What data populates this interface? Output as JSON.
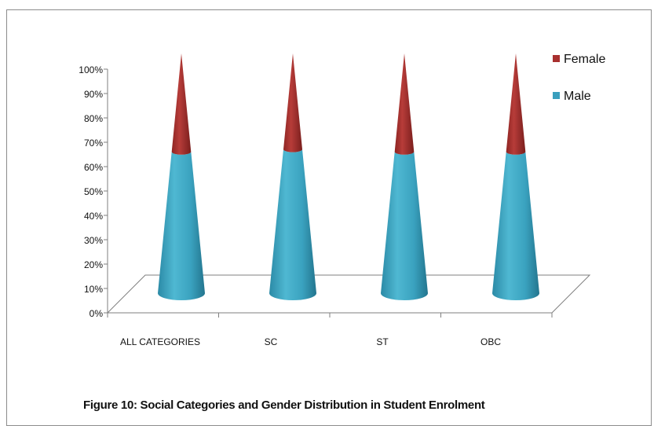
{
  "chart_data": {
    "type": "bar",
    "stacked": true,
    "percent_stacked": true,
    "shape": "3d-cone",
    "categories": [
      "ALL CATEGORIES",
      "SC",
      "ST",
      "OBC"
    ],
    "series": [
      {
        "name": "Male",
        "values": [
          59,
          60,
          59,
          59
        ],
        "color": "#3a9fbd"
      },
      {
        "name": "Female",
        "values": [
          41,
          40,
          41,
          41
        ],
        "color": "#a8302f"
      }
    ],
    "ylim": [
      0,
      100
    ],
    "yticks": [
      "0%",
      "10%",
      "20%",
      "30%",
      "40%",
      "50%",
      "60%",
      "70%",
      "80%",
      "90%",
      "100%"
    ],
    "legend_position": "top-right",
    "legend_order": [
      "Female",
      "Male"
    ],
    "grid": false,
    "caption": "Figure 10: Social Categories and Gender Distribution in Student Enrolment"
  }
}
